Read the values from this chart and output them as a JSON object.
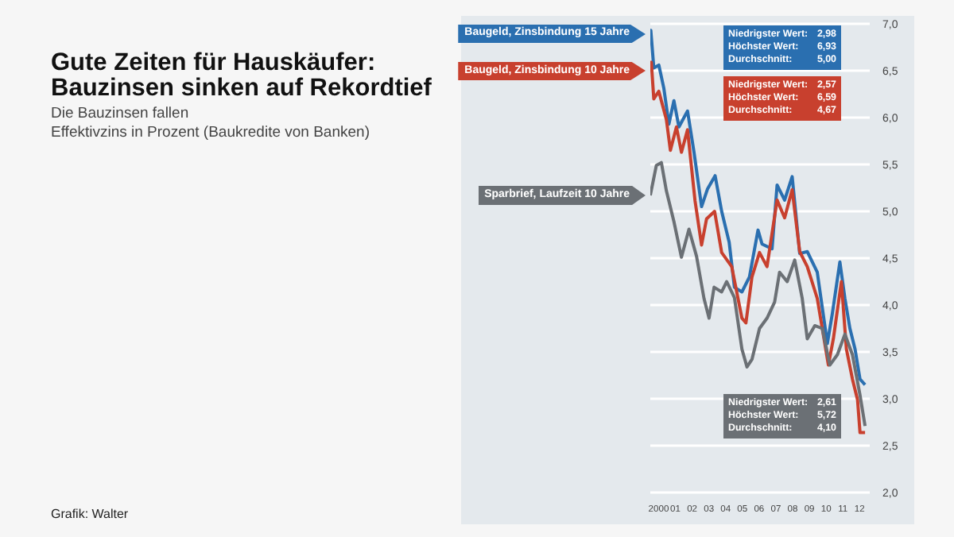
{
  "chart_data": {
    "type": "line",
    "title": "Gute Zeiten für Hauskäufer:\nBauzinsen sinken auf Rekordtief",
    "subtitle": "Die Bauzinsen fallen\nEffektivzins in Prozent (Baukredite von Banken)",
    "series": [
      {
        "name": "Baugeld, Zinsbindung 15 Jahre",
        "color": "#2a6fb0",
        "x": [
          "2000-01-01",
          "2000-01-12",
          "2000-03-17",
          "2000-07-05",
          "2000-10-23",
          "2001-02-09",
          "2001-05-30",
          "2001-09-16",
          "2002-03-23",
          "2002-08-11",
          "2003-01-23",
          "2003-06-03",
          "2003-11-14",
          "2004-04-05",
          "2004-09-16",
          "2005-01-08",
          "2005-06-21",
          "2005-12-02",
          "2006-06-07",
          "2006-09-03",
          "2007-04-09",
          "2007-07-28",
          "2008-01-08",
          "2008-06-21",
          "2008-12-02",
          "2009-05-16",
          "2009-12-20",
          "2010-07-28",
          "2010-11-14",
          "2011-04-27",
          "2011-08-15",
          "2011-12-02",
          "2012-03-23",
          "2012-07-09",
          "2012-10-27"
        ],
        "values": [
          6.89,
          6.93,
          6.53,
          6.56,
          6.31,
          5.93,
          6.18,
          5.9,
          6.07,
          5.63,
          5.05,
          5.24,
          5.38,
          5.0,
          4.67,
          4.19,
          4.14,
          4.3,
          4.8,
          4.65,
          4.6,
          5.28,
          5.12,
          5.37,
          4.55,
          4.57,
          4.35,
          3.59,
          3.91,
          4.46,
          4.07,
          3.75,
          3.53,
          3.21,
          3.15
        ]
      },
      {
        "name": "Baugeld, Zinsbindung 10 Jahre",
        "color": "#c8402e",
        "x": [
          "2000-01-01",
          "2000-01-23",
          "2000-03-17",
          "2000-07-05",
          "2000-12-16",
          "2001-03-14",
          "2001-07-24",
          "2001-11-10",
          "2002-03-23",
          "2002-09-03",
          "2003-01-23",
          "2003-05-12",
          "2003-11-03",
          "2004-04-05",
          "2004-11-10",
          "2005-06-21",
          "2005-09-16",
          "2006-01-26",
          "2006-07-09",
          "2006-12-20",
          "2007-07-28",
          "2008-01-08",
          "2008-06-21",
          "2008-12-02",
          "2009-05-16",
          "2009-12-20",
          "2010-08-19",
          "2010-12-06",
          "2011-05-30",
          "2011-09-16",
          "2012-01-26",
          "2012-05-16",
          "2012-07-09",
          "2012-10-27"
        ],
        "values": [
          6.5,
          6.59,
          6.2,
          6.28,
          5.98,
          5.65,
          5.9,
          5.63,
          5.87,
          5.11,
          4.64,
          4.92,
          5.0,
          4.56,
          4.41,
          3.86,
          3.81,
          4.3,
          4.56,
          4.41,
          5.12,
          4.93,
          5.23,
          4.57,
          4.41,
          4.07,
          3.36,
          3.64,
          4.25,
          3.53,
          3.21,
          2.99,
          2.64,
          2.64
        ]
      },
      {
        "name": "Sparbrief, Laufzeit 10 Jahre",
        "color": "#6b7075",
        "x": [
          "2000-01-01",
          "2000-05-12",
          "2000-08-29",
          "2000-12-16",
          "2001-05-30",
          "2001-11-10",
          "2002-04-23",
          "2002-10-05",
          "2003-03-17",
          "2003-07-05",
          "2003-10-23",
          "2004-04-05",
          "2004-07-24",
          "2005-01-08",
          "2005-06-21",
          "2005-10-09",
          "2006-01-26",
          "2006-07-09",
          "2006-12-20",
          "2007-06-03",
          "2007-09-20",
          "2008-03-04",
          "2008-08-15",
          "2009-01-26",
          "2009-05-16",
          "2009-10-27",
          "2010-04-09",
          "2010-09-20",
          "2011-03-04",
          "2011-08-15",
          "2012-01-26",
          "2012-07-09",
          "2012-10-27"
        ],
        "values": [
          5.17,
          5.49,
          5.52,
          5.22,
          4.89,
          4.51,
          4.81,
          4.52,
          4.07,
          3.86,
          4.19,
          4.14,
          4.25,
          4.08,
          3.53,
          3.34,
          3.42,
          3.75,
          3.86,
          4.03,
          4.35,
          4.25,
          4.48,
          4.07,
          3.64,
          3.78,
          3.75,
          3.36,
          3.47,
          3.69,
          3.47,
          3.04,
          2.71
        ]
      }
    ],
    "xlim": [
      "2000-01-01",
      "2013-02-06"
    ],
    "xticks": [
      {
        "value": "2000-07-01",
        "label": "2000"
      },
      {
        "value": "2001-07-01",
        "label": "01"
      },
      {
        "value": "2002-07-01",
        "label": "02"
      },
      {
        "value": "2003-07-01",
        "label": "03"
      },
      {
        "value": "2004-07-01",
        "label": "04"
      },
      {
        "value": "2005-07-01",
        "label": "05"
      },
      {
        "value": "2006-07-01",
        "label": "06"
      },
      {
        "value": "2007-07-01",
        "label": "07"
      },
      {
        "value": "2008-07-01",
        "label": "08"
      },
      {
        "value": "2009-07-01",
        "label": "09"
      },
      {
        "value": "2010-07-01",
        "label": "10"
      },
      {
        "value": "2011-07-01",
        "label": "11"
      },
      {
        "value": "2012-07-01",
        "label": "12"
      }
    ],
    "ylim": [
      2,
      7
    ],
    "yticks": [
      {
        "value": 2,
        "label": "2,0"
      },
      {
        "value": 2.5,
        "label": "2,5"
      },
      {
        "value": 3,
        "label": "3,0"
      },
      {
        "value": 3.5,
        "label": "3,5"
      },
      {
        "value": 4,
        "label": "4,0"
      },
      {
        "value": 4.5,
        "label": "4,5"
      },
      {
        "value": 5,
        "label": "5,0"
      },
      {
        "value": 5.5,
        "label": "5,5"
      },
      {
        "value": 6,
        "label": "6,0"
      },
      {
        "value": 6.5,
        "label": "6,5"
      },
      {
        "value": 7,
        "label": "7,0"
      }
    ],
    "grid": "y",
    "legend": false,
    "marker": "none",
    "line_style": "solid",
    "annotations": [
      "Niedrigster Wert: 2,98\nHöchster Wert: 6,93\nDurchschnitt: 5,00",
      "Niedrigster Wert: 2,57\nHöchster Wert: 6,59\nDurchschnitt: 4,67",
      "Niedrigster Wert: 2,61\nHöchster Wert: 5,72\nDurchschnitt: 4,10",
      "Grafik: Walter"
    ]
  }
}
